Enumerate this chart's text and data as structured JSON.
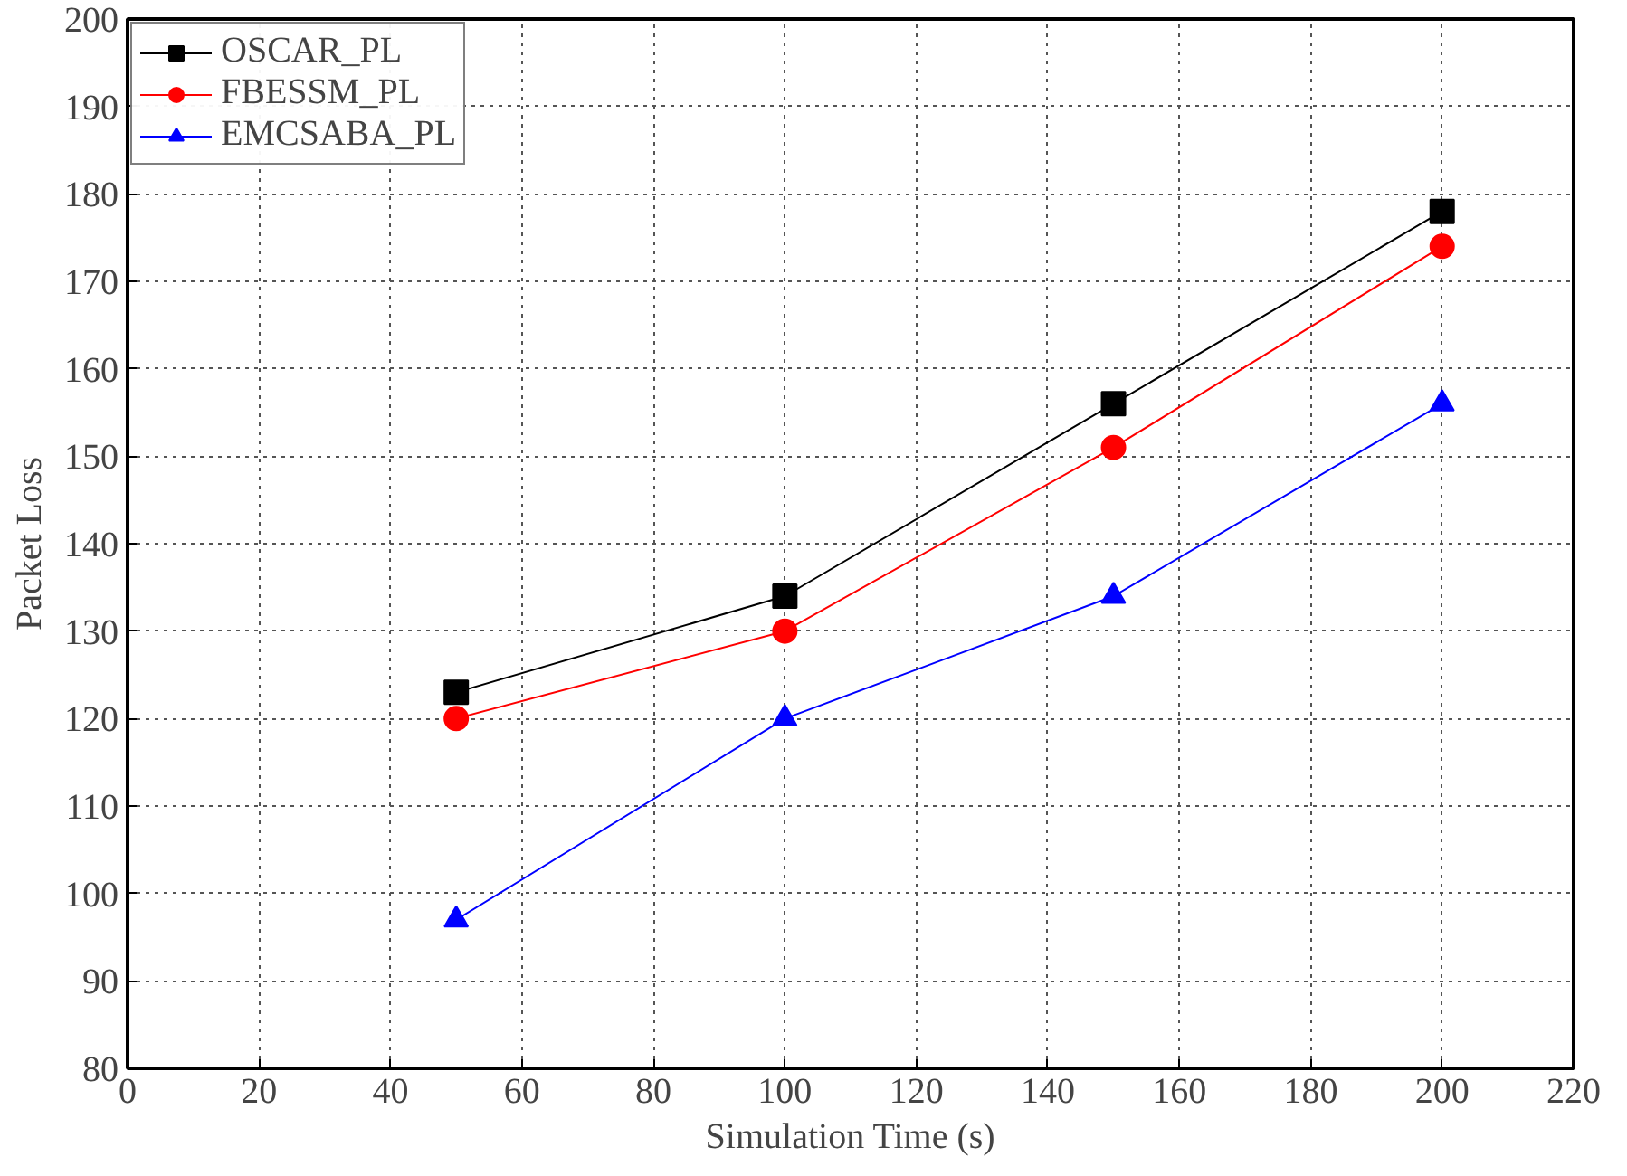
{
  "chart_data": {
    "type": "line",
    "xlabel": "Simulation Time (s)",
    "ylabel": "Packet Loss",
    "x": [
      50,
      100,
      150,
      200
    ],
    "series": [
      {
        "name": "OSCAR_PL",
        "color": "#000000",
        "marker": "square",
        "values": [
          123,
          134,
          156,
          178
        ]
      },
      {
        "name": "FBESSM_PL",
        "color": "#ff0000",
        "marker": "circle",
        "values": [
          120,
          130,
          151,
          174
        ]
      },
      {
        "name": "EMCSABA_PL",
        "color": "#0000ff",
        "marker": "triangle",
        "values": [
          97,
          120,
          134,
          156
        ]
      }
    ],
    "xlim": [
      0,
      220
    ],
    "xticks": [
      0,
      20,
      40,
      60,
      80,
      100,
      120,
      140,
      160,
      180,
      200,
      220
    ],
    "ylim": [
      80,
      200
    ],
    "yticks": [
      80,
      90,
      100,
      110,
      120,
      130,
      140,
      150,
      160,
      170,
      180,
      190,
      200
    ],
    "grid": true,
    "legend": "top left",
    "line_style": "solid"
  }
}
